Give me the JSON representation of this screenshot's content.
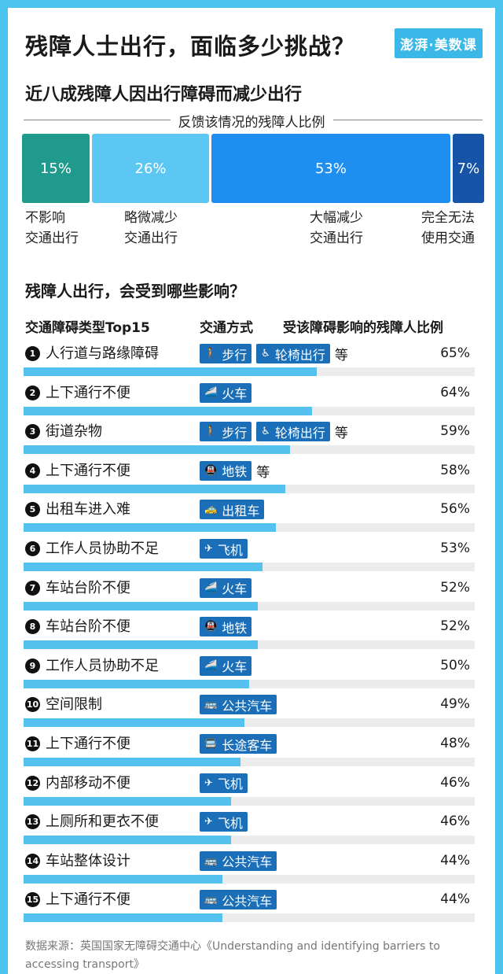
{
  "header": {
    "title": "残障人士出行，面临多少挑战？",
    "logo": "澎湃·美数课"
  },
  "section1": {
    "title": "近八成残障人因出行障碍而减少出行",
    "legend": "反馈该情况的残障人比例"
  },
  "section2": {
    "title": "残障人出行，会受到哪些影响？",
    "col_type": "交通障碍类型Top15",
    "col_mode": "交通方式",
    "col_pct": "受该障碍影响的残障人比例"
  },
  "colors": {
    "background": "#4dc3f0",
    "seg1": "#1f9a8c",
    "seg2": "#5cc7f2",
    "seg3": "#1e8ef0",
    "seg4": "#1554a6",
    "tag": "#1a6fb8",
    "bar": "#55c1ef",
    "track": "#ececec"
  },
  "chart_data": [
    {
      "type": "bar",
      "stacked": true,
      "orientation": "horizontal",
      "categories": [
        "不影响交通出行",
        "略微减少交通出行",
        "大幅减少交通出行",
        "完全无法使用交通"
      ],
      "segments": [
        {
          "label_line1": "不影响",
          "label_line2": "交通出行",
          "value": 15,
          "value_label": "15%"
        },
        {
          "label_line1": "略微减少",
          "label_line2": "交通出行",
          "value": 26,
          "value_label": "26%"
        },
        {
          "label_line1": "大幅减少",
          "label_line2": "交通出行",
          "value": 53,
          "value_label": "53%"
        },
        {
          "label_line1": "完全无法",
          "label_line2": "使用交通",
          "value": 7,
          "value_label": "7%"
        }
      ],
      "unit": "%"
    },
    {
      "type": "bar",
      "orientation": "horizontal",
      "xlim": [
        0,
        100
      ],
      "unit": "%",
      "rows": [
        {
          "rank": "1",
          "barrier": "人行道与路缘障碍",
          "modes": [
            {
              "icon": "person-walking-icon",
              "glyph": "🚶",
              "label": "步行"
            },
            {
              "icon": "wheelchair-icon",
              "glyph": "♿",
              "label": "轮椅出行"
            }
          ],
          "etc": "等",
          "value": 65,
          "value_label": "65%"
        },
        {
          "rank": "2",
          "barrier": "上下通行不便",
          "modes": [
            {
              "icon": "train-icon",
              "glyph": "🚄",
              "label": "火车"
            }
          ],
          "etc": "",
          "value": 64,
          "value_label": "64%"
        },
        {
          "rank": "3",
          "barrier": "街道杂物",
          "modes": [
            {
              "icon": "person-walking-icon",
              "glyph": "🚶",
              "label": "步行"
            },
            {
              "icon": "wheelchair-icon",
              "glyph": "♿",
              "label": "轮椅出行"
            }
          ],
          "etc": "等",
          "value": 59,
          "value_label": "59%"
        },
        {
          "rank": "4",
          "barrier": "上下通行不便",
          "modes": [
            {
              "icon": "metro-icon",
              "glyph": "🚇",
              "label": "地铁"
            }
          ],
          "etc": "等",
          "value": 58,
          "value_label": "58%"
        },
        {
          "rank": "5",
          "barrier": "出租车进入难",
          "modes": [
            {
              "icon": "taxi-icon",
              "glyph": "🚕",
              "label": "出租车"
            }
          ],
          "etc": "",
          "value": 56,
          "value_label": "56%"
        },
        {
          "rank": "6",
          "barrier": "工作人员协助不足",
          "modes": [
            {
              "icon": "airplane-icon",
              "glyph": "✈",
              "label": "飞机"
            }
          ],
          "etc": "",
          "value": 53,
          "value_label": "53%"
        },
        {
          "rank": "7",
          "barrier": "车站台阶不便",
          "modes": [
            {
              "icon": "train-icon",
              "glyph": "🚄",
              "label": "火车"
            }
          ],
          "etc": "",
          "value": 52,
          "value_label": "52%"
        },
        {
          "rank": "8",
          "barrier": "车站台阶不便",
          "modes": [
            {
              "icon": "metro-icon",
              "glyph": "🚇",
              "label": "地铁"
            }
          ],
          "etc": "",
          "value": 52,
          "value_label": "52%"
        },
        {
          "rank": "9",
          "barrier": "工作人员协助不足",
          "modes": [
            {
              "icon": "train-icon",
              "glyph": "🚄",
              "label": "火车"
            }
          ],
          "etc": "",
          "value": 50,
          "value_label": "50%"
        },
        {
          "rank": "10",
          "barrier": "空间限制",
          "modes": [
            {
              "icon": "bus-icon",
              "glyph": "🚌",
              "label": "公共汽车"
            }
          ],
          "etc": "",
          "value": 49,
          "value_label": "49%"
        },
        {
          "rank": "11",
          "barrier": "上下通行不便",
          "modes": [
            {
              "icon": "coach-icon",
              "glyph": "🚍",
              "label": "长途客车"
            }
          ],
          "etc": "",
          "value": 48,
          "value_label": "48%"
        },
        {
          "rank": "12",
          "barrier": "内部移动不便",
          "modes": [
            {
              "icon": "airplane-icon",
              "glyph": "✈",
              "label": "飞机"
            }
          ],
          "etc": "",
          "value": 46,
          "value_label": "46%"
        },
        {
          "rank": "13",
          "barrier": "上厕所和更衣不便",
          "modes": [
            {
              "icon": "airplane-icon",
              "glyph": "✈",
              "label": "飞机"
            }
          ],
          "etc": "",
          "value": 46,
          "value_label": "46%"
        },
        {
          "rank": "14",
          "barrier": "车站整体设计",
          "modes": [
            {
              "icon": "bus-icon",
              "glyph": "🚌",
              "label": "公共汽车"
            }
          ],
          "etc": "",
          "value": 44,
          "value_label": "44%"
        },
        {
          "rank": "15",
          "barrier": "上下通行不便",
          "modes": [
            {
              "icon": "bus-icon",
              "glyph": "🚌",
              "label": "公共汽车"
            }
          ],
          "etc": "",
          "value": 44,
          "value_label": "44%"
        }
      ]
    }
  ],
  "footer": {
    "source": "数据来源：英国国家无障碍交通中心《Understanding and identifying barriers to accessing transport》"
  }
}
